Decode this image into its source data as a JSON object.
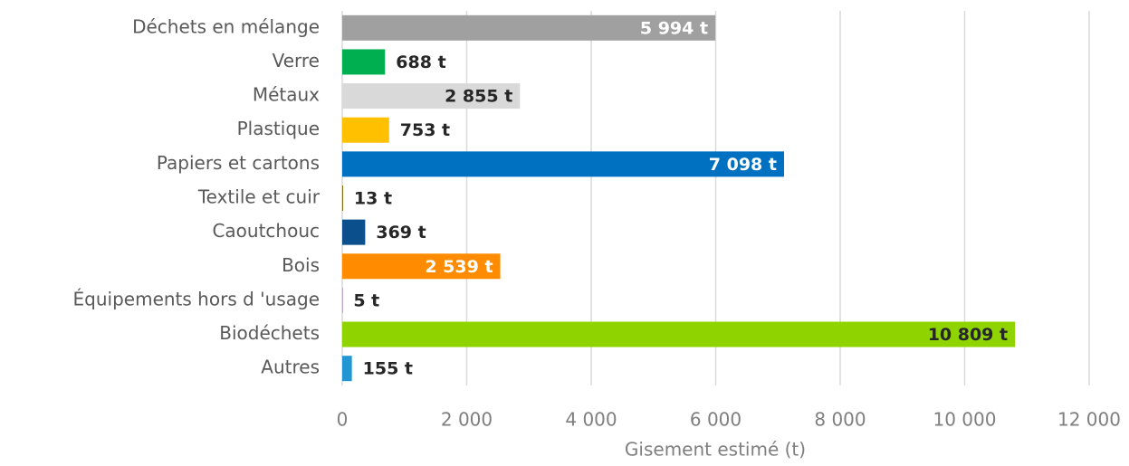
{
  "chart_data": {
    "type": "hbar",
    "categories": [
      "Déchets en mélange",
      "Verre",
      "Métaux",
      "Plastique",
      "Papiers et cartons",
      "Textile et cuir",
      "Caoutchouc",
      "Bois",
      "Équipements hors d 'usage",
      "Biodéchets",
      "Autres"
    ],
    "values": [
      5994,
      688,
      2855,
      753,
      7098,
      13,
      369,
      2539,
      5,
      10809,
      155
    ],
    "value_labels": [
      "5 994 t",
      "688 t",
      "2 855 t",
      "753 t",
      "7 098 t",
      "13 t",
      "369 t",
      "2 539 t",
      "5 t",
      "10 809 t",
      "155 t"
    ],
    "colors": [
      "#a0a0a0",
      "#00b050",
      "#d9d9d9",
      "#ffc000",
      "#0070c0",
      "#7f6000",
      "#0b4f8c",
      "#ff8c00",
      "#7030a0",
      "#8fd400",
      "#2196d3"
    ],
    "label_colors": [
      "#ffffff",
      "#262626",
      "#262626",
      "#262626",
      "#ffffff",
      "#262626",
      "#262626",
      "#ffffff",
      "#262626",
      "#262626",
      "#262626"
    ],
    "xlabel": "Gisement estimé (t)",
    "xlim": [
      0,
      12000
    ],
    "xticks": [
      0,
      {
        "value": 2000,
        "label": "2 000"
      },
      {
        "value": 4000,
        "label": "4 000"
      },
      {
        "value": 6000,
        "label": "6 000"
      },
      {
        "value": 8000,
        "label": "8 000"
      },
      {
        "value": 10000,
        "label": "10 000"
      },
      {
        "value": 12000,
        "label": "12 000"
      }
    ],
    "grid": true
  }
}
